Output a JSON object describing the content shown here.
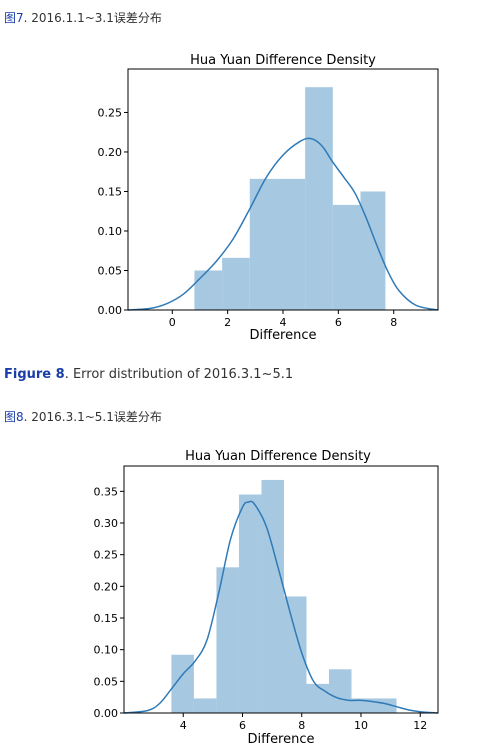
{
  "captions": {
    "fig7_zh_label": "图7",
    "fig7_zh_text": ". 2016.1.1~3.1误差分布",
    "fig8_en_label": "Figure 8",
    "fig8_en_text": ". Error distribution of 2016.3.1~5.1",
    "fig8_zh_label": "图8",
    "fig8_zh_text": ". 2016.3.1~5.1误差分布"
  },
  "colors": {
    "bar": "#a6c8e0",
    "line": "#2f7ab7"
  },
  "chart_data": [
    {
      "type": "histogram",
      "title": "Hua Yuan Difference Density",
      "xlabel": "Difference",
      "ylabel": "",
      "xlim": [
        -1.6,
        9.6
      ],
      "ylim": [
        0,
        0.305
      ],
      "xticks": [
        0,
        2,
        4,
        6,
        8
      ],
      "yticks": [
        "0.00",
        "0.05",
        "0.10",
        "0.15",
        "0.20",
        "0.25"
      ],
      "ytick_values": [
        0,
        0.05,
        0.1,
        0.15,
        0.2,
        0.25
      ],
      "bin_edges": [
        0.8,
        1.8,
        2.8,
        3.8,
        4.8,
        5.8,
        6.8,
        7.7
      ],
      "values": [
        0.05,
        0.066,
        0.166,
        0.166,
        0.282,
        0.133,
        0.15
      ],
      "kde": {
        "x": [
          -1.6,
          -0.8,
          -0.2,
          0.4,
          1.0,
          1.6,
          2.2,
          2.8,
          3.4,
          4.0,
          4.6,
          5.0,
          5.4,
          5.8,
          6.2,
          6.6,
          7.0,
          7.4,
          7.8,
          8.2,
          8.8,
          9.6
        ],
        "y": [
          0.0,
          0.002,
          0.008,
          0.02,
          0.04,
          0.062,
          0.09,
          0.128,
          0.168,
          0.196,
          0.213,
          0.217,
          0.208,
          0.187,
          0.168,
          0.148,
          0.117,
          0.081,
          0.048,
          0.024,
          0.006,
          0.0
        ]
      }
    },
    {
      "type": "histogram",
      "title": "Hua Yuan Difference Density",
      "xlabel": "Difference",
      "ylabel": "",
      "xlim": [
        2.0,
        12.6
      ],
      "ylim": [
        0,
        0.39
      ],
      "xticks": [
        4,
        6,
        8,
        10,
        12
      ],
      "yticks": [
        "0.00",
        "0.05",
        "0.10",
        "0.15",
        "0.20",
        "0.25",
        "0.30",
        "0.35"
      ],
      "ytick_values": [
        0,
        0.05,
        0.1,
        0.15,
        0.2,
        0.25,
        0.3,
        0.35
      ],
      "bin_edges": [
        3.6,
        4.36,
        5.12,
        5.88,
        6.64,
        7.4,
        8.16,
        8.92,
        9.68,
        10.44,
        11.2
      ],
      "values": [
        0.092,
        0.023,
        0.23,
        0.345,
        0.368,
        0.184,
        0.046,
        0.069,
        0.023,
        0.023
      ],
      "kde": {
        "x": [
          2.0,
          2.8,
          3.2,
          3.6,
          4.0,
          4.4,
          4.8,
          5.2,
          5.6,
          6.0,
          6.2,
          6.4,
          6.8,
          7.2,
          7.6,
          8.0,
          8.4,
          8.8,
          9.2,
          9.6,
          10.0,
          10.4,
          10.8,
          11.2,
          11.6,
          12.0,
          12.6
        ],
        "y": [
          0.0,
          0.004,
          0.015,
          0.038,
          0.062,
          0.082,
          0.115,
          0.19,
          0.275,
          0.325,
          0.333,
          0.33,
          0.295,
          0.23,
          0.16,
          0.095,
          0.05,
          0.034,
          0.024,
          0.02,
          0.02,
          0.018,
          0.015,
          0.01,
          0.005,
          0.002,
          0.0
        ]
      }
    }
  ]
}
